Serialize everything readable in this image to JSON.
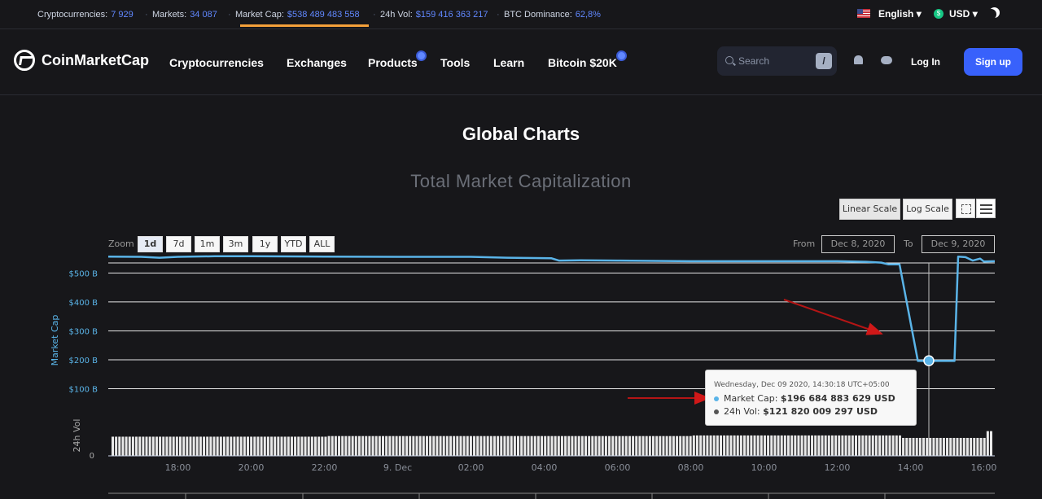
{
  "topbar": {
    "stats": [
      {
        "label": "Cryptocurrencies:",
        "value": "7 929"
      },
      {
        "label": "Markets:",
        "value": "34 087"
      },
      {
        "label": "Market Cap:",
        "value": "$538 489 483 558"
      },
      {
        "label": "24h Vol:",
        "value": "$159 416 363 217"
      },
      {
        "label": "BTC Dominance:",
        "value": "62,8%"
      }
    ],
    "language": "English",
    "currency": "USD",
    "currency_symbol": "$"
  },
  "nav": {
    "brand": "CoinMarketCap",
    "links": [
      "Cryptocurrencies",
      "Exchanges",
      "Products",
      "Tools",
      "Learn",
      "Bitcoin $20K"
    ],
    "search_placeholder": "Search",
    "search_shortcut": "/",
    "login": "Log In",
    "signup": "Sign up"
  },
  "page": {
    "title": "Global Charts"
  },
  "chart_controls": {
    "scale_buttons": [
      "Linear Scale",
      "Log Scale"
    ],
    "zoom_label": "Zoom",
    "zoom_buttons": [
      "1d",
      "7d",
      "1m",
      "3m",
      "1y",
      "YTD",
      "ALL"
    ],
    "selected_zoom": "1d",
    "from_label": "From",
    "from_value": "Dec 8, 2020",
    "to_label": "To",
    "to_value": "Dec 9, 2020"
  },
  "tooltip": {
    "date": "Wednesday, Dec 09 2020, 14:30:18 UTC+05:00",
    "rows": [
      {
        "label": "Market Cap:",
        "value": "$196 684 883 629 USD",
        "color": "#5ab4e8"
      },
      {
        "label": "24h Vol:",
        "value": "$121 820 009 297 USD",
        "color": "#555555"
      }
    ]
  },
  "chart_data": {
    "type": "line",
    "title": "Total Market Capitalization",
    "ylabel": "Market Cap",
    "ylabel2": "24h Vol",
    "ylim": [
      0,
      600
    ],
    "y_unit": "billion USD",
    "y_ticks": [
      0,
      100,
      200,
      300,
      400,
      500
    ],
    "y_tick_labels": [
      "",
      "$100 B",
      "$200 B",
      "$300 B",
      "$400 B",
      "$500 B"
    ],
    "vol_tick_label": "0",
    "x_tick_labels": [
      "18:00",
      "20:00",
      "22:00",
      "9. Dec",
      "02:00",
      "04:00",
      "06:00",
      "08:00",
      "10:00",
      "12:00",
      "14:00",
      "16:00"
    ],
    "x_tick_hours": [
      18,
      20,
      22,
      24,
      26,
      28,
      30,
      32,
      34,
      36,
      38,
      40
    ],
    "x_range_hours": [
      16.1,
      40.3
    ],
    "grid": true,
    "series": [
      {
        "name": "Market Cap",
        "color": "#5ab4e8",
        "points": [
          [
            16.1,
            557
          ],
          [
            17,
            556
          ],
          [
            17.5,
            553
          ],
          [
            18,
            556
          ],
          [
            19,
            558
          ],
          [
            20,
            558
          ],
          [
            22,
            557
          ],
          [
            24,
            556
          ],
          [
            26,
            556
          ],
          [
            27,
            553
          ],
          [
            28.2,
            551
          ],
          [
            28.4,
            543
          ],
          [
            29,
            544
          ],
          [
            30,
            543
          ],
          [
            31,
            542
          ],
          [
            32,
            541
          ],
          [
            33,
            541
          ],
          [
            34,
            541
          ],
          [
            35,
            541
          ],
          [
            36,
            541
          ],
          [
            36.8,
            539
          ],
          [
            37.2,
            536
          ],
          [
            37.4,
            530
          ],
          [
            37.7,
            530
          ],
          [
            38.2,
            196
          ],
          [
            38.5,
            196
          ],
          [
            39.2,
            196
          ],
          [
            39.3,
            557
          ],
          [
            39.5,
            555
          ],
          [
            39.7,
            543
          ],
          [
            39.9,
            550
          ],
          [
            40.0,
            540
          ],
          [
            40.3,
            541
          ]
        ]
      },
      {
        "name": "24h Vol",
        "color": "#e9e9e9",
        "y_axis": "secondary",
        "level_start": 0.62,
        "level_mid": 0.64,
        "level_end": 0.62,
        "level_spike": 0.8,
        "unit": "fraction of volume pane height"
      }
    ],
    "hover_point": {
      "x": 38.5,
      "y": 196.68
    }
  }
}
